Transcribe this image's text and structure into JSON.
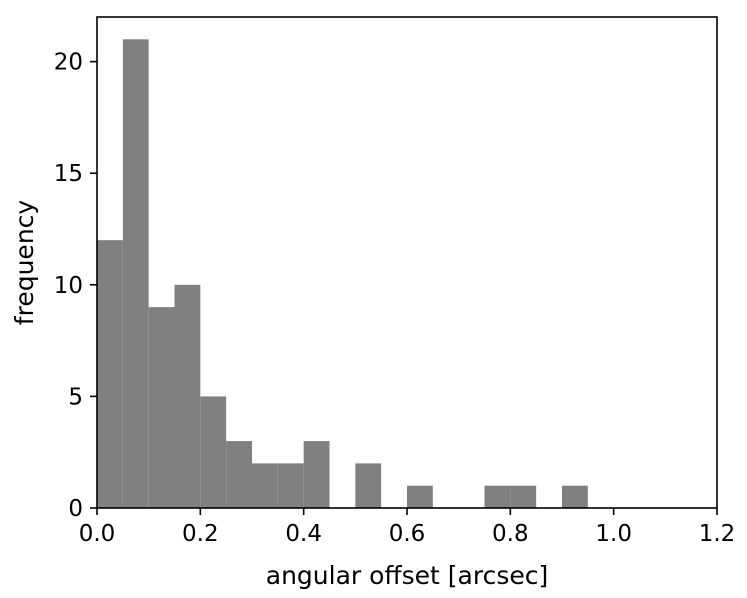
{
  "chart_data": {
    "type": "bar",
    "subtype": "histogram",
    "title": "",
    "xlabel": "angular offset [arcsec]",
    "ylabel": "frequency",
    "xlim": [
      0.0,
      1.2
    ],
    "ylim": [
      0,
      22
    ],
    "grid": false,
    "legend": "none",
    "bar_color": "#808080",
    "bin_width": 0.05,
    "bins": [
      {
        "x0": 0.0,
        "x1": 0.05,
        "count": 12
      },
      {
        "x0": 0.05,
        "x1": 0.1,
        "count": 21
      },
      {
        "x0": 0.1,
        "x1": 0.15,
        "count": 9
      },
      {
        "x0": 0.15,
        "x1": 0.2,
        "count": 10
      },
      {
        "x0": 0.2,
        "x1": 0.25,
        "count": 5
      },
      {
        "x0": 0.25,
        "x1": 0.3,
        "count": 3
      },
      {
        "x0": 0.3,
        "x1": 0.35,
        "count": 2
      },
      {
        "x0": 0.35,
        "x1": 0.4,
        "count": 2
      },
      {
        "x0": 0.4,
        "x1": 0.45,
        "count": 3
      },
      {
        "x0": 0.45,
        "x1": 0.5,
        "count": 0
      },
      {
        "x0": 0.5,
        "x1": 0.55,
        "count": 2
      },
      {
        "x0": 0.55,
        "x1": 0.6,
        "count": 0
      },
      {
        "x0": 0.6,
        "x1": 0.65,
        "count": 1
      },
      {
        "x0": 0.65,
        "x1": 0.7,
        "count": 0
      },
      {
        "x0": 0.7,
        "x1": 0.75,
        "count": 0
      },
      {
        "x0": 0.75,
        "x1": 0.8,
        "count": 1
      },
      {
        "x0": 0.8,
        "x1": 0.85,
        "count": 1
      },
      {
        "x0": 0.85,
        "x1": 0.9,
        "count": 0
      },
      {
        "x0": 0.9,
        "x1": 0.95,
        "count": 1
      }
    ],
    "x_ticks": [
      {
        "value": 0.0,
        "label": "0.0"
      },
      {
        "value": 0.2,
        "label": "0.2"
      },
      {
        "value": 0.4,
        "label": "0.4"
      },
      {
        "value": 0.6,
        "label": "0.6"
      },
      {
        "value": 0.8,
        "label": "0.8"
      },
      {
        "value": 1.0,
        "label": "1.0"
      },
      {
        "value": 1.2,
        "label": "1.2"
      }
    ],
    "y_ticks": [
      {
        "value": 0,
        "label": "0"
      },
      {
        "value": 5,
        "label": "5"
      },
      {
        "value": 10,
        "label": "10"
      },
      {
        "value": 15,
        "label": "15"
      },
      {
        "value": 20,
        "label": "20"
      }
    ]
  }
}
